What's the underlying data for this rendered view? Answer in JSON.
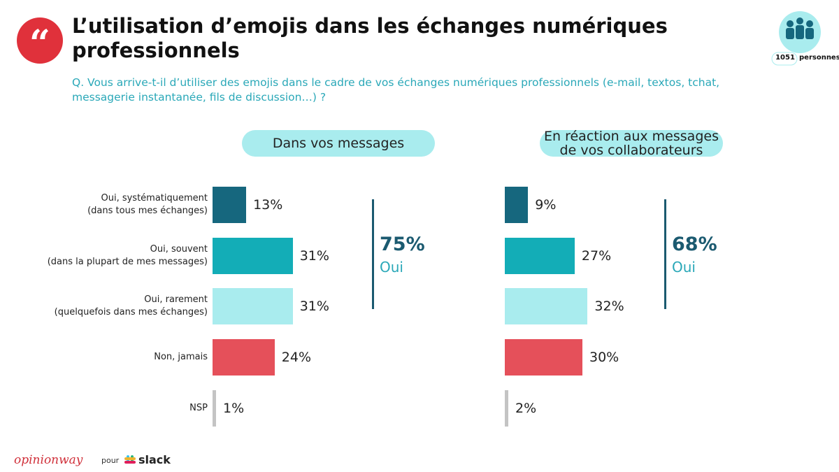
{
  "title": "L’utilisation d’emojis dans les échanges numériques professionnels",
  "question": "Q. Vous arrive-t-il d’utiliser des emojis dans le cadre de vos échanges numériques professionnels (e-mail, textos, tchat, messagerie instantanée, fils de discussion…) ?",
  "sample": {
    "count": "1051",
    "label": "personnes"
  },
  "footer": {
    "brand": "opinionway",
    "pour": "pour",
    "partner": "slack"
  },
  "chart_data": [
    {
      "type": "bar",
      "orientation": "horizontal",
      "title": "Dans vos messages",
      "categories": [
        "Oui, systématiquement\n(dans tous mes échanges)",
        "Oui, souvent\n(dans la plupart de mes messages)",
        "Oui, rarement\n(quelquefois dans mes échanges)",
        "Non, jamais",
        "NSP"
      ],
      "values": [
        13,
        31,
        31,
        24,
        1
      ],
      "value_labels": [
        "13%",
        "31%",
        "31%",
        "24%",
        "1%"
      ],
      "colors": [
        "#16677e",
        "#13adb7",
        "#a9ecee",
        "#e5505a",
        "#c4c4c4"
      ],
      "xlim": [
        0,
        100
      ],
      "summary": {
        "value": 75,
        "value_label": "75%",
        "label": "Oui"
      }
    },
    {
      "type": "bar",
      "orientation": "horizontal",
      "title": "En réaction aux messages\nde vos collaborateurs",
      "values": [
        9,
        27,
        32,
        30,
        2
      ],
      "value_labels": [
        "9%",
        "27%",
        "32%",
        "30%",
        "2%"
      ],
      "colors": [
        "#16677e",
        "#13adb7",
        "#a9ecee",
        "#e5505a",
        "#c4c4c4"
      ],
      "xlim": [
        0,
        100
      ],
      "summary": {
        "value": 68,
        "value_label": "68%",
        "label": "Oui"
      }
    }
  ]
}
